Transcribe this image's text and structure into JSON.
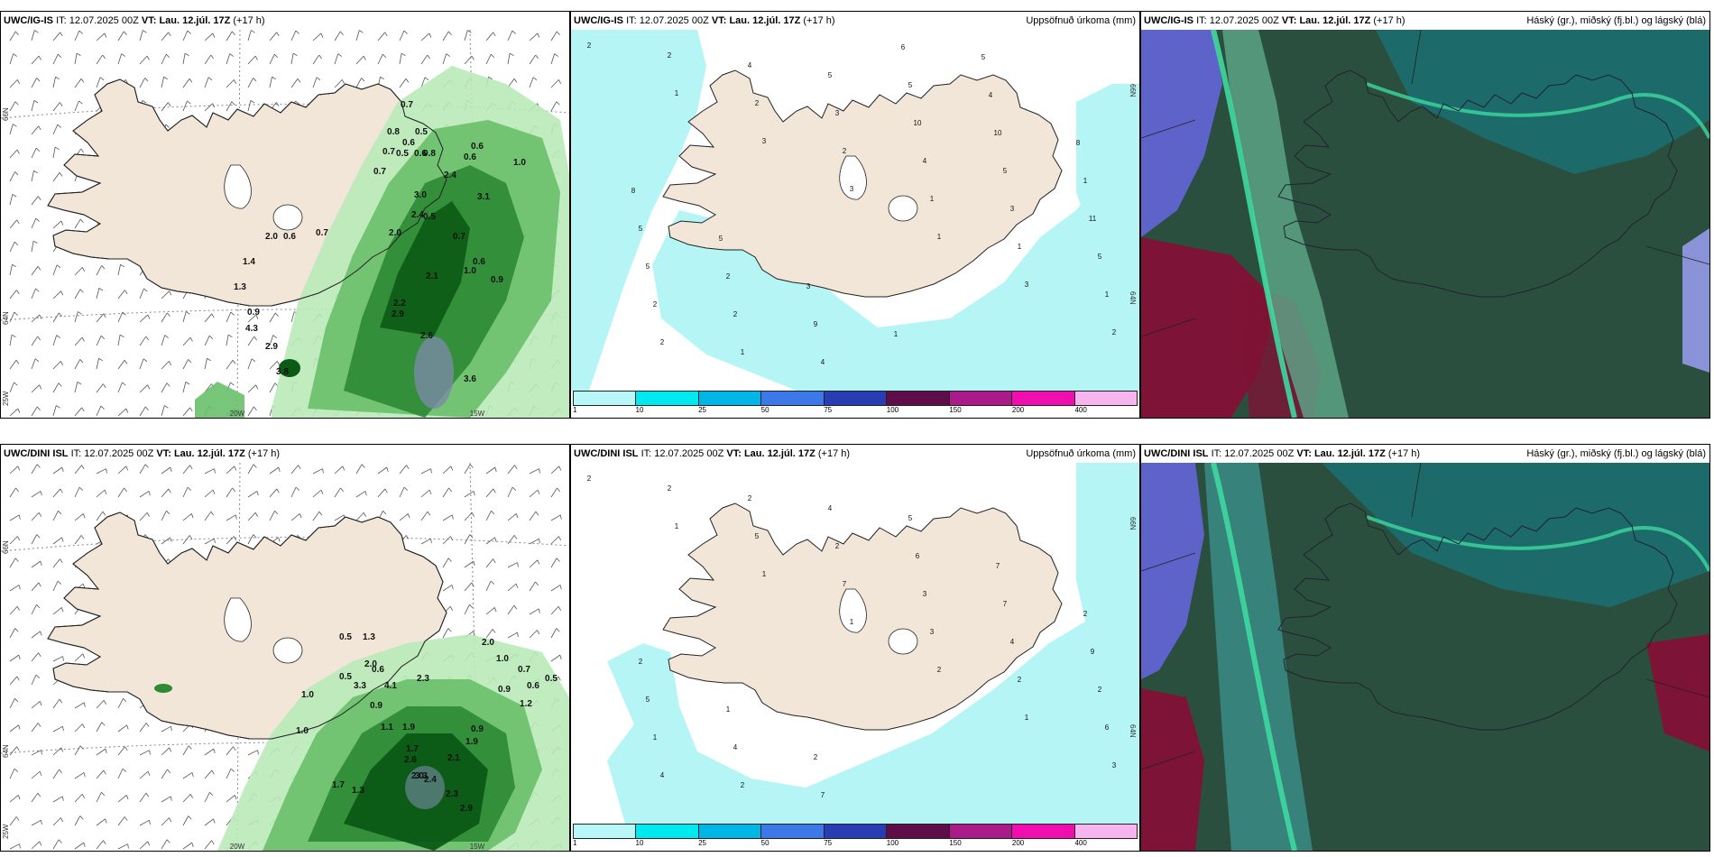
{
  "run_info": {
    "it_prefix": "IT:",
    "it_value": "12.07.2025 00Z",
    "vt_label": "VT:",
    "vt_value": "Lau. 12.júl. 17Z",
    "lead": "(+17 h)"
  },
  "rows": [
    {
      "model": "UWC/IG-IS",
      "wind_values": [
        "0.7",
        "0.8",
        "0.5",
        "0.6",
        "0.7",
        "0.5",
        "0.6",
        "0.6",
        "0.7",
        "0.8",
        "2.4",
        "0.6",
        "1.0",
        "3.0",
        "3.1",
        "2.4",
        "2.0",
        "0.5",
        "0.7",
        "0.6",
        "0.9",
        "1.0",
        "2.1",
        "2.2",
        "2.9",
        "2.6",
        "3.6",
        "3.8",
        "2.9",
        "4.3",
        "0.9",
        "1.3",
        "1.4",
        "2.0",
        "0.6",
        "0.7"
      ],
      "precip_numbers": [
        "2",
        "1",
        "3",
        "3",
        "1",
        "3",
        "2",
        "2",
        "2",
        "2",
        "1",
        "1",
        "1",
        "2",
        "4",
        "3",
        "4",
        "3",
        "5",
        "2",
        "1",
        "5",
        "10",
        "5",
        "11",
        "5",
        "2",
        "4",
        "5",
        "10",
        "1",
        "5",
        "2",
        "9",
        "6",
        "4",
        "8",
        "8",
        "5",
        "3",
        "1",
        "5"
      ]
    },
    {
      "model": "UWC/DINI ISL",
      "wind_values": [
        "0.5",
        "1.3",
        "0.6",
        "1.0",
        "0.5",
        "2.0",
        "3.3",
        "4.1",
        "2.3",
        "0.9",
        "1.1",
        "1.9",
        "1.7",
        "2.0",
        "2.6",
        "1.9",
        "2.1",
        "2.4",
        "3.3",
        "2.3",
        "2.9",
        "0.9",
        "1.0",
        "0.7",
        "1.2",
        "0.6",
        "0.5",
        "0.9",
        "2.0",
        "1.0",
        "1.7",
        "1.3"
      ],
      "precip_numbers": [
        "2",
        "1",
        "1",
        "1",
        "2",
        "1",
        "3",
        "2",
        "5",
        "7",
        "3",
        "2",
        "6",
        "4",
        "2",
        "2",
        "3",
        "4",
        "2",
        "1",
        "2",
        "4",
        "6",
        "7",
        "9",
        "5",
        "4",
        "7",
        "5",
        "7",
        "2",
        "2",
        "1",
        "2"
      ]
    }
  ],
  "precip_title": "Uppsöfnuð úrkoma (mm)",
  "cloud_title": "Háský (gr.), miðský (fj.bl.) og lágský (blá)",
  "legend": {
    "labels": [
      "1",
      "10",
      "25",
      "50",
      "75",
      "100",
      "150",
      "200",
      "400"
    ],
    "colors": [
      "#b8f7f7",
      "#00e8f0",
      "#00b6e6",
      "#3c78e8",
      "#2a3cb4",
      "#5e0d49",
      "#aa1a8a",
      "#f00eb0",
      "#f7b5f0"
    ]
  },
  "axes": {
    "lat_left": "66N",
    "lat_mid": "64N",
    "lon_left": "25W",
    "lon_mid": "20W",
    "lon_right": "15W"
  },
  "colors": {
    "land": "#f2e6d9",
    "precip_light": "#b6f5f5",
    "green_light": "#b9eab8",
    "green_mid": "#69c06a",
    "green_dark": "#2e8a34",
    "green_darkest": "#0b5a15",
    "cloud_blue": "#5e63c9",
    "cloud_teal": "#1d6a6a",
    "cloud_green": "#2b4f3e",
    "cloud_maroon": "#7d1336",
    "cloud_mint": "#3fd8a0"
  }
}
